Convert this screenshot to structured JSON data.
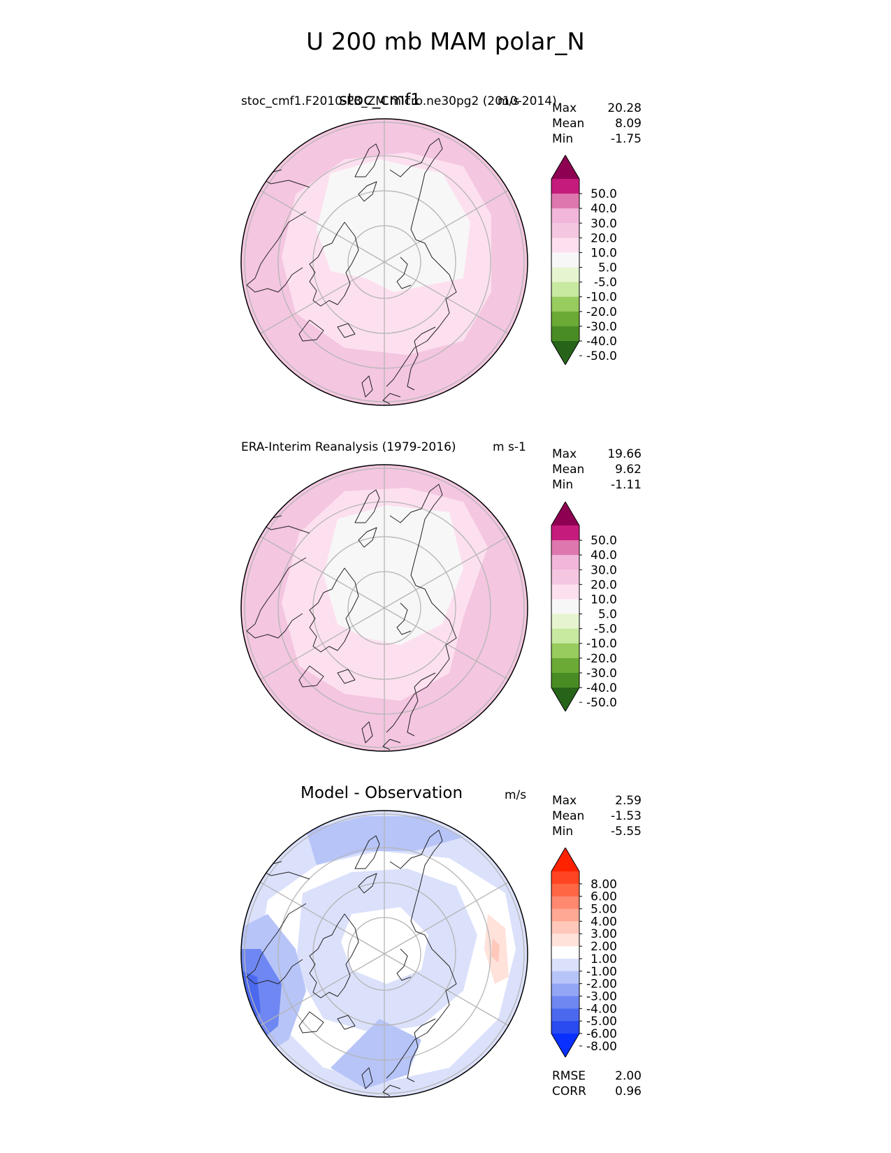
{
  "title": "U 200 mb MAM polar_N",
  "panels": [
    {
      "id": "test",
      "center_title": "stoc_cmf1",
      "subtitle": "stoc_cmf1.F2010-P3_ZM.micro.ne30pg2 (2010-2014)",
      "units": "m/s",
      "stats": [
        {
          "label": "Max",
          "value": "20.28"
        },
        {
          "label": "Mean",
          "value": "8.09"
        },
        {
          "label": "Min",
          "value": "-1.75"
        }
      ]
    },
    {
      "id": "ref",
      "center_title": "",
      "subtitle": "ERA-Interim Reanalysis (1979-2016)",
      "units": "m s-1",
      "stats": [
        {
          "label": "Max",
          "value": "19.66"
        },
        {
          "label": "Mean",
          "value": "9.62"
        },
        {
          "label": "Min",
          "value": "-1.11"
        }
      ]
    },
    {
      "id": "diff",
      "center_title": "Model - Observation",
      "subtitle": "",
      "units": "m/s",
      "stats": [
        {
          "label": "Max",
          "value": "2.59"
        },
        {
          "label": "Mean",
          "value": "-1.53"
        },
        {
          "label": "Min",
          "value": "-5.55"
        }
      ],
      "extra_stats": [
        {
          "label": "RMSE",
          "value": "2.00"
        },
        {
          "label": "CORR",
          "value": "0.96"
        }
      ]
    }
  ],
  "chart_data": [
    {
      "type": "heatmap",
      "projection": "north polar stereographic",
      "title": "stoc_cmf1",
      "colorbar_levels": [
        "50.0",
        "40.0",
        "30.0",
        "20.0",
        "10.0",
        "5.0",
        "-5.0",
        "-10.0",
        "-20.0",
        "-30.0",
        "-40.0",
        "-50.0"
      ],
      "colorbar_colors": [
        "#8e0152",
        "#c51b7d",
        "#de77ae",
        "#f1b6da",
        "#f4c6e0",
        "#fde0ef",
        "#f7f7f7",
        "#e6f5d0",
        "#c7e9a0",
        "#98cc5e",
        "#6aaa35",
        "#4a8c24",
        "#276419"
      ],
      "stats": {
        "max": 20.28,
        "mean": 8.09,
        "min": -1.75
      }
    },
    {
      "type": "heatmap",
      "projection": "north polar stereographic",
      "title": "ERA-Interim Reanalysis (1979-2016)",
      "colorbar_levels": [
        "50.0",
        "40.0",
        "30.0",
        "20.0",
        "10.0",
        "5.0",
        "-5.0",
        "-10.0",
        "-20.0",
        "-30.0",
        "-40.0",
        "-50.0"
      ],
      "colorbar_colors": [
        "#8e0152",
        "#c51b7d",
        "#de77ae",
        "#f1b6da",
        "#f4c6e0",
        "#fde0ef",
        "#f7f7f7",
        "#e6f5d0",
        "#c7e9a0",
        "#98cc5e",
        "#6aaa35",
        "#4a8c24",
        "#276419"
      ],
      "stats": {
        "max": 19.66,
        "mean": 9.62,
        "min": -1.11
      }
    },
    {
      "type": "heatmap",
      "projection": "north polar stereographic",
      "title": "Model - Observation",
      "colorbar_levels": [
        "8.00",
        "6.00",
        "5.00",
        "4.00",
        "3.00",
        "2.00",
        "1.00",
        "-1.00",
        "-2.00",
        "-3.00",
        "-4.00",
        "-5.00",
        "-6.00",
        "-8.00"
      ],
      "colorbar_colors": [
        "#ff2200",
        "#ff4422",
        "#ff6644",
        "#ff8870",
        "#ffa995",
        "#ffc8bb",
        "#ffe2da",
        "#ffffff",
        "#dbe1fb",
        "#b7c4f8",
        "#93a6f5",
        "#6f87f2",
        "#4b69ef",
        "#2a4bf0",
        "#0a30ff"
      ],
      "stats": {
        "max": 2.59,
        "mean": -1.53,
        "min": -5.55,
        "rmse": 2.0,
        "corr": 0.96
      }
    }
  ]
}
